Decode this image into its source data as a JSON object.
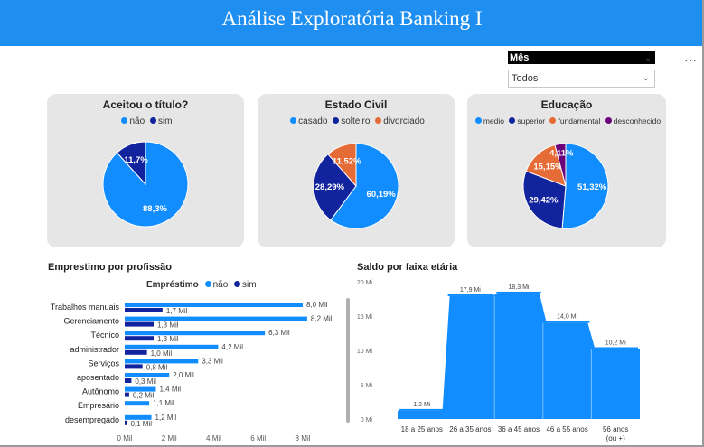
{
  "header": {
    "title": "Análise Exploratória Banking I"
  },
  "slicer": {
    "title": "Mês",
    "value": "Todos"
  },
  "colors": {
    "blue": "#118DFF",
    "navy": "#12239E",
    "orange": "#E66C37",
    "purple": "#6B007B"
  },
  "pies": [
    {
      "title": "Aceitou o título?",
      "legend": [
        "não",
        "sim"
      ],
      "slices": [
        {
          "name": "não",
          "value": 88.3,
          "label": "88,3%",
          "color": "#118DFF"
        },
        {
          "name": "sim",
          "value": 11.7,
          "label": "11,7%",
          "color": "#12239E"
        }
      ]
    },
    {
      "title": "Estado Civil",
      "legend": [
        "casado",
        "solteiro",
        "divorciado"
      ],
      "slices": [
        {
          "name": "casado",
          "value": 60.19,
          "label": "60,19%",
          "color": "#118DFF"
        },
        {
          "name": "solteiro",
          "value": 28.29,
          "label": "28,29%",
          "color": "#12239E"
        },
        {
          "name": "divorciado",
          "value": 11.52,
          "label": "11,52%",
          "color": "#E66C37"
        }
      ]
    },
    {
      "title": "Educação",
      "legend": [
        "medio",
        "superior",
        "fundamental",
        "desconhecido"
      ],
      "slices": [
        {
          "name": "medio",
          "value": 51.32,
          "label": "51,32%",
          "color": "#118DFF"
        },
        {
          "name": "superior",
          "value": 29.42,
          "label": "29,42%",
          "color": "#12239E"
        },
        {
          "name": "fundamental",
          "value": 15.15,
          "label": "15,15%",
          "color": "#E66C37"
        },
        {
          "name": "desconhecido",
          "value": 4.11,
          "label": "4,11%",
          "color": "#6B007B"
        }
      ]
    }
  ],
  "chart_data": [
    {
      "type": "pie",
      "title": "Aceitou o título?",
      "categories": [
        "não",
        "sim"
      ],
      "values": [
        88.3,
        11.7
      ]
    },
    {
      "type": "pie",
      "title": "Estado Civil",
      "categories": [
        "casado",
        "solteiro",
        "divorciado"
      ],
      "values": [
        60.19,
        28.29,
        11.52
      ]
    },
    {
      "type": "pie",
      "title": "Educação",
      "categories": [
        "medio",
        "superior",
        "fundamental",
        "desconhecido"
      ],
      "values": [
        51.32,
        29.42,
        15.15,
        4.11
      ]
    },
    {
      "type": "bar",
      "orientation": "horizontal",
      "title": "Emprestimo por profissão",
      "legend_title": "Empréstimo",
      "categories": [
        "Trabalhos manuais",
        "Gerenciamento",
        "Técnico",
        "administrador",
        "Serviços",
        "aposentado",
        "Autônomo",
        "Empresário",
        "desempregado"
      ],
      "series": [
        {
          "name": "não",
          "values": [
            8000,
            8200,
            6300,
            4200,
            3300,
            2000,
            1400,
            1100,
            1200
          ],
          "labels": [
            "8,0 Mil",
            "8,2 Mil",
            "6,3 Mil",
            "4,2 Mil",
            "3,3 Mil",
            "2,0 Mil",
            "1,4 Mil",
            "1,1 Mil",
            "1,2 Mil"
          ]
        },
        {
          "name": "sim",
          "values": [
            1700,
            1300,
            1300,
            1000,
            800,
            300,
            200,
            0,
            100
          ],
          "labels": [
            "1,7 Mil",
            "1,3 Mil",
            "1,3 Mil",
            "1,0 Mil",
            "0,8 Mil",
            "0,3 Mil",
            "0,2 Mil",
            "",
            "0,1 Mil"
          ]
        }
      ],
      "xticks": [
        "0 Mil",
        "2 Mil",
        "4 Mil",
        "6 Mil",
        "8 Mil"
      ],
      "xlim": [
        0,
        8000
      ]
    },
    {
      "type": "area",
      "title": "Saldo por faixa etária",
      "categories": [
        "18 a 25 anos",
        "26 a 35 anos",
        "36 a 45 anos",
        "46 a 55 anos",
        "56 anos (ou +)"
      ],
      "values": [
        1.2,
        17.9,
        18.3,
        14.0,
        10.2
      ],
      "labels": [
        "1,2 Mi",
        "17,9 Mi",
        "18,3 Mi",
        "14,0 Mi",
        "10,2 Mi"
      ],
      "yticks": [
        "0 Mi",
        "5 Mi",
        "10 Mi",
        "15 Mi",
        "20 Mi"
      ],
      "ylim": [
        0,
        20
      ]
    }
  ],
  "bar_section": {
    "title": "Emprestimo por profissão",
    "legend_title": "Empréstimo",
    "legend": [
      "não",
      "sim"
    ]
  },
  "area_section": {
    "title": "Saldo por faixa etária"
  }
}
